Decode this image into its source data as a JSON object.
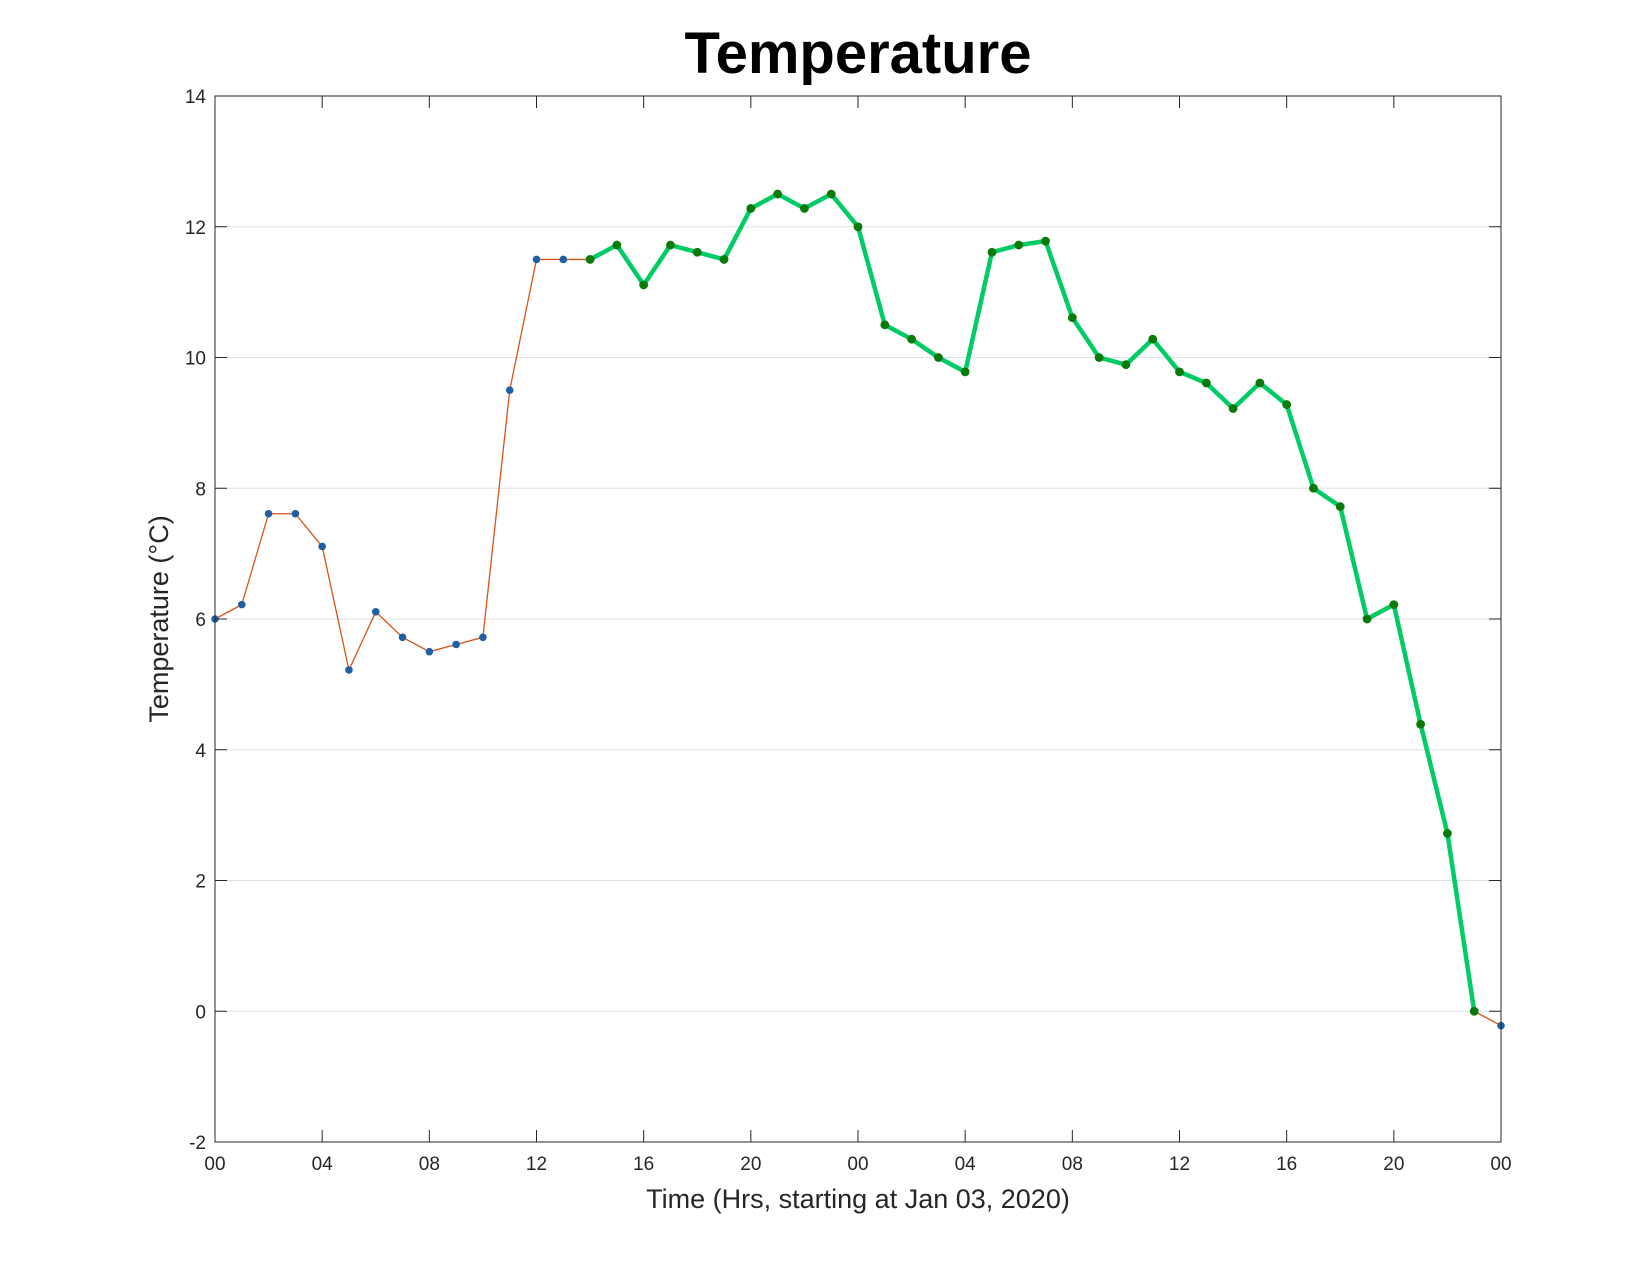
{
  "chart_data": {
    "type": "line",
    "title": "Temperature",
    "xlabel": "Time (Hrs, starting at Jan 03, 2020)",
    "ylabel": "Temperature (°C)",
    "xlim": [
      0,
      48
    ],
    "ylim": [
      -2,
      14
    ],
    "x_ticks": [
      0,
      4,
      8,
      12,
      16,
      20,
      24,
      28,
      32,
      36,
      40,
      44,
      48
    ],
    "x_tick_labels": [
      "00",
      "04",
      "08",
      "12",
      "16",
      "20",
      "00",
      "04",
      "08",
      "12",
      "16",
      "20",
      "00"
    ],
    "y_ticks": [
      -2,
      0,
      2,
      4,
      6,
      8,
      10,
      12,
      14
    ],
    "y_tick_labels": [
      "-2",
      "0",
      "2",
      "4",
      "6",
      "8",
      "10",
      "12",
      "14"
    ],
    "grid": "horizontal",
    "series": [
      {
        "color": "#d95319",
        "marker_color": "#1f5fa3",
        "x": [
          0,
          1,
          2,
          3,
          4,
          5,
          6,
          7,
          8,
          9,
          10,
          11,
          12,
          13,
          14,
          15,
          16,
          17,
          18,
          19,
          20,
          21,
          22,
          23,
          24,
          25,
          26,
          27,
          28,
          29,
          30,
          31,
          32,
          33,
          34,
          35,
          36,
          37,
          38,
          39,
          40,
          41,
          42,
          43,
          44,
          45,
          46,
          47,
          48
        ],
        "values": [
          6.0,
          6.22,
          7.61,
          7.61,
          7.11,
          5.22,
          6.11,
          5.72,
          5.5,
          5.61,
          5.72,
          9.5,
          11.5,
          11.5,
          11.5,
          11.72,
          11.11,
          11.72,
          11.61,
          11.5,
          12.28,
          12.5,
          12.28,
          12.5,
          12.0,
          10.5,
          10.28,
          10.0,
          9.78,
          11.61,
          11.72,
          11.78,
          10.61,
          10.0,
          9.89,
          10.28,
          9.78,
          9.61,
          9.22,
          9.61,
          9.28,
          8.0,
          7.72,
          6.0,
          6.22,
          4.39,
          2.72,
          0.0,
          -0.22
        ]
      },
      {
        "color": "#00cc66",
        "marker_color": "#0a7a0a",
        "x": [
          14,
          15,
          16,
          17,
          18,
          19,
          20,
          21,
          22,
          23,
          24,
          25,
          26,
          27,
          28,
          29,
          30,
          31,
          32,
          33,
          34,
          35,
          36,
          37,
          38,
          39,
          40,
          41,
          42,
          43,
          44,
          45,
          46,
          47
        ],
        "values": [
          11.5,
          11.72,
          11.11,
          11.72,
          11.61,
          11.5,
          12.28,
          12.5,
          12.28,
          12.5,
          12.0,
          10.5,
          10.28,
          10.0,
          9.78,
          11.61,
          11.72,
          11.78,
          10.61,
          10.0,
          9.89,
          10.28,
          9.78,
          9.61,
          9.22,
          9.61,
          9.28,
          8.0,
          7.72,
          6.0,
          6.22,
          4.39,
          2.72,
          0.0
        ]
      }
    ]
  }
}
